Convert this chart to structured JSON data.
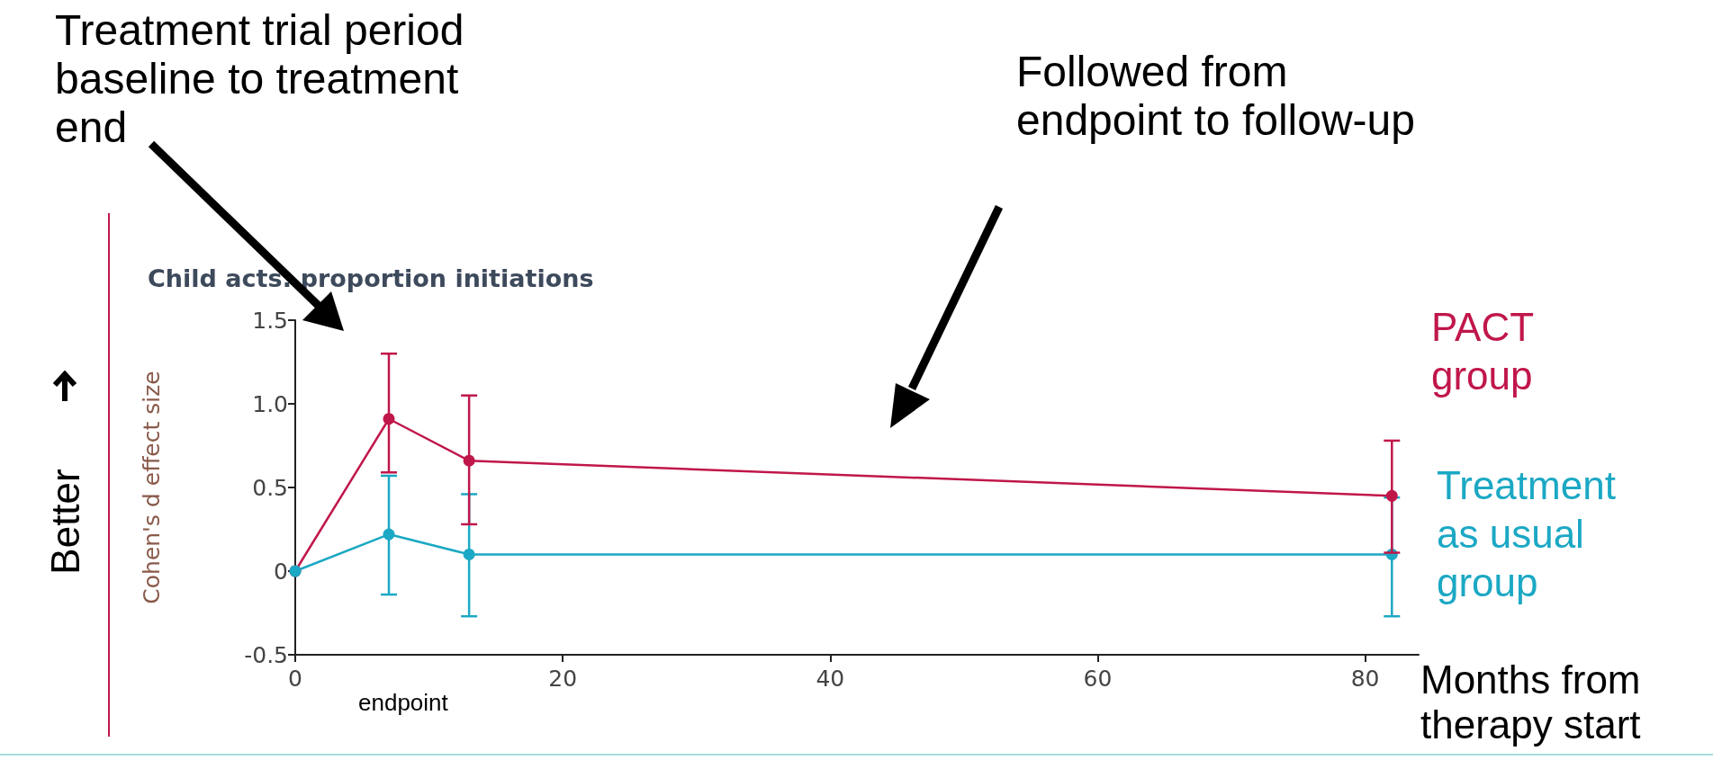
{
  "chart_data": {
    "type": "line",
    "title": "Child acts: proportion initiations",
    "xlabel": "Months from therapy start",
    "ylabel": "Cohen's d effect size",
    "annotations": [
      "Treatment trial period baseline to treatment end",
      "Followed from endpoint to follow-up",
      "endpoint",
      "Better"
    ],
    "series": [
      {
        "name": "PACT group",
        "color": "#c0174a",
        "x": [
          0,
          7,
          13,
          82
        ],
        "values": [
          0,
          0.91,
          0.66,
          0.45
        ],
        "errors": [
          null,
          [
            0.59,
            1.3
          ],
          [
            0.28,
            1.05
          ],
          [
            0.11,
            0.78
          ]
        ]
      },
      {
        "name": "Treatment as usual group",
        "color": "#1ba8c4",
        "x": [
          0,
          7,
          13,
          82
        ],
        "values": [
          0,
          0.22,
          0.1,
          0.1
        ],
        "errors": [
          null,
          [
            -0.14,
            0.57
          ],
          [
            -0.27,
            0.46
          ],
          [
            -0.27,
            0.44
          ]
        ]
      }
    ],
    "xlim": [
      0,
      84
    ],
    "xticks": [
      0,
      20,
      40,
      60,
      80
    ],
    "ylim": [
      -0.5,
      1.5
    ],
    "yticks": [
      1.5,
      {
        "value": 1,
        "label": "1.0"
      },
      0.5,
      0,
      -0.5
    ],
    "marker": "circle",
    "line_style": "solid"
  }
}
